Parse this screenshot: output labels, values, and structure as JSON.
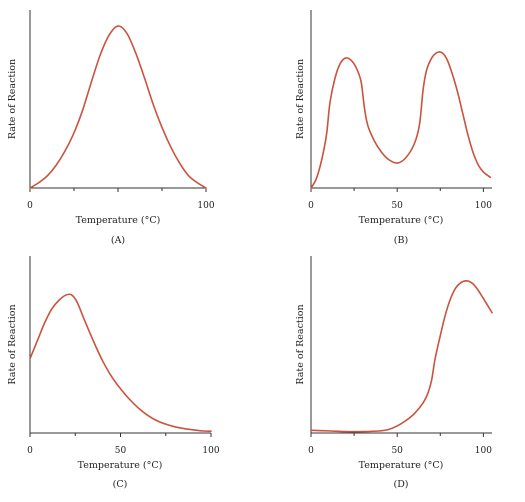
{
  "colors": {
    "curve": "#c9533f",
    "axis": "#333333"
  },
  "chart_data": [
    {
      "type": "line",
      "panel_label": "(A)",
      "xlabel": "Temperature (°C)",
      "ylabel": "Rate of Reaction",
      "xlim": [
        0,
        100
      ],
      "ylim": [
        0,
        1
      ],
      "xticks": [
        0,
        50,
        100
      ],
      "xtick_labels": [
        "0",
        "",
        "100"
      ],
      "minor_xticks": [
        25,
        75
      ],
      "grid": false,
      "x": [
        0,
        5,
        10,
        15,
        20,
        25,
        30,
        35,
        40,
        45,
        50,
        55,
        60,
        65,
        70,
        75,
        80,
        85,
        90,
        95,
        100
      ],
      "y": [
        0.0,
        0.03,
        0.07,
        0.13,
        0.21,
        0.31,
        0.44,
        0.6,
        0.75,
        0.86,
        0.91,
        0.87,
        0.76,
        0.62,
        0.47,
        0.34,
        0.23,
        0.14,
        0.07,
        0.03,
        0.0
      ]
    },
    {
      "type": "line",
      "panel_label": "(B)",
      "xlabel": "Temperature (°C)",
      "ylabel": "Rate of Reaction",
      "xlim": [
        0,
        105
      ],
      "ylim": [
        0,
        1
      ],
      "xticks": [
        0,
        50,
        100
      ],
      "xtick_labels": [
        "0",
        "50",
        "100"
      ],
      "minor_xticks": [
        25,
        75
      ],
      "grid": false,
      "x": [
        0,
        3,
        6,
        9,
        11,
        14,
        17,
        20,
        23,
        26,
        29,
        31,
        33,
        37,
        41,
        45,
        50,
        55,
        60,
        63,
        65,
        67,
        70,
        73,
        76,
        79,
        82,
        85,
        88,
        91,
        94,
        97,
        100,
        104
      ],
      "y": [
        0.0,
        0.05,
        0.15,
        0.3,
        0.48,
        0.62,
        0.7,
        0.73,
        0.72,
        0.68,
        0.6,
        0.45,
        0.35,
        0.26,
        0.2,
        0.16,
        0.14,
        0.17,
        0.25,
        0.36,
        0.55,
        0.66,
        0.73,
        0.76,
        0.76,
        0.72,
        0.64,
        0.54,
        0.42,
        0.3,
        0.2,
        0.13,
        0.09,
        0.06
      ]
    },
    {
      "type": "line",
      "panel_label": "(C)",
      "xlabel": "Temperature (°C)",
      "ylabel": "Rate of Reaction",
      "xlim": [
        0,
        100
      ],
      "ylim": [
        0,
        1
      ],
      "xticks": [
        0,
        50,
        100
      ],
      "xtick_labels": [
        "0",
        "50",
        "100"
      ],
      "minor_xticks": [
        25,
        75
      ],
      "grid": false,
      "x": [
        0,
        4,
        8,
        12,
        16,
        20,
        23,
        26,
        30,
        35,
        40,
        45,
        50,
        55,
        60,
        65,
        70,
        75,
        80,
        85,
        90,
        95,
        100
      ],
      "y": [
        0.42,
        0.52,
        0.62,
        0.7,
        0.75,
        0.78,
        0.78,
        0.74,
        0.64,
        0.52,
        0.41,
        0.32,
        0.25,
        0.19,
        0.14,
        0.1,
        0.07,
        0.05,
        0.035,
        0.025,
        0.018,
        0.012,
        0.01
      ]
    },
    {
      "type": "line",
      "panel_label": "(D)",
      "xlabel": "Temperature (°C)",
      "ylabel": "Rate of Reaction",
      "xlim": [
        0,
        105
      ],
      "ylim": [
        0,
        1
      ],
      "xticks": [
        0,
        50,
        100
      ],
      "xtick_labels": [
        "0",
        "50",
        "100"
      ],
      "minor_xticks": [
        25,
        75
      ],
      "grid": false,
      "x": [
        0,
        10,
        20,
        30,
        40,
        45,
        50,
        55,
        60,
        65,
        68,
        70,
        72,
        75,
        78,
        81,
        84,
        87,
        90,
        93,
        96,
        100,
        105
      ],
      "y": [
        0.015,
        0.012,
        0.008,
        0.008,
        0.012,
        0.02,
        0.04,
        0.07,
        0.11,
        0.17,
        0.23,
        0.3,
        0.42,
        0.55,
        0.67,
        0.76,
        0.82,
        0.85,
        0.86,
        0.85,
        0.82,
        0.76,
        0.68
      ]
    }
  ]
}
